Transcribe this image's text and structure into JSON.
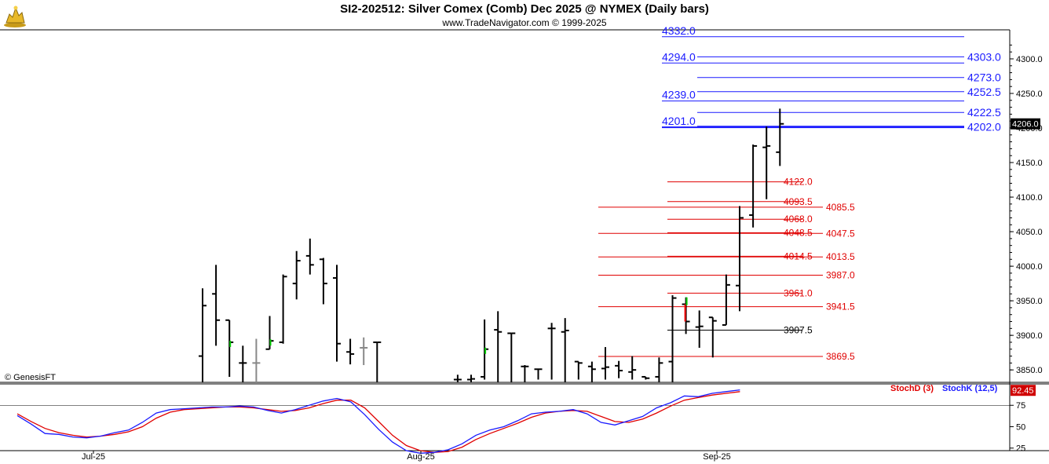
{
  "header": {
    "title": "SI2-202512:  Silver Comex (Comb) Dec 2025 @ NYMEX  (Daily bars)",
    "subtitle": "www.TradeNavigator.com © 1999-2025",
    "watermark": "© GenesisFT",
    "logo_icon": "golden-bull-icon"
  },
  "colors": {
    "price_bar": "#000000",
    "up_tick": "#00cc00",
    "down_tick": "#ff0000",
    "faded_bar": "#888888",
    "level_blue": "#1a1aff",
    "level_red": "#e00000",
    "stoch_d": "#e00000",
    "stoch_k": "#1a1aff"
  },
  "chart_data": [
    {
      "type": "ohlc",
      "y_axis_ticks": [
        3850,
        3900,
        3950,
        4000,
        4050,
        4100,
        4150,
        4200,
        4250,
        4300
      ],
      "y_range": [
        3832,
        4342
      ],
      "x_tick_labels": [
        {
          "label": "Jul-25",
          "bar": 6
        },
        {
          "label": "Aug-25",
          "bar": 29
        },
        {
          "label": "Sep-25",
          "bar": 50
        }
      ],
      "last_price_label": "4206.0",
      "bars": [
        {
          "o": 3870,
          "h": 3968,
          "l": 3832,
          "c": 3943,
          "style": "normal"
        },
        {
          "o": 3960,
          "h": 4002,
          "l": 3885,
          "c": 3922,
          "style": "normal"
        },
        {
          "o": 3922,
          "h": 3922,
          "l": 3840,
          "c": 3890,
          "style": "normal",
          "mark": "up"
        },
        {
          "o": 3860,
          "h": 3885,
          "l": 3832,
          "c": 3860,
          "style": "normal"
        },
        {
          "o": 3860,
          "h": 3895,
          "l": 3832,
          "c": 3860,
          "style": "faded"
        },
        {
          "o": 3880,
          "h": 3928,
          "l": 3880,
          "c": 3892,
          "style": "normal",
          "mark": "up"
        },
        {
          "o": 3890,
          "h": 3988,
          "l": 3888,
          "c": 3985,
          "style": "normal"
        },
        {
          "o": 3975,
          "h": 4022,
          "l": 3952,
          "c": 4008,
          "style": "normal"
        },
        {
          "o": 4015,
          "h": 4040,
          "l": 3988,
          "c": 4002,
          "style": "normal"
        },
        {
          "o": 4010,
          "h": 4012,
          "l": 3945,
          "c": 3975,
          "style": "normal"
        },
        {
          "o": 3983,
          "h": 4002,
          "l": 3862,
          "c": 3888,
          "style": "normal"
        },
        {
          "o": 3876,
          "h": 3895,
          "l": 3858,
          "c": 3873,
          "style": "normal"
        },
        {
          "o": 3882,
          "h": 3897,
          "l": 3857,
          "c": 3882,
          "style": "faded"
        },
        {
          "o": 3890,
          "h": 3890,
          "l": 3832,
          "c": 3890,
          "style": "normal"
        },
        {
          "o": null,
          "h": null,
          "l": null,
          "c": null,
          "style": "gap"
        },
        {
          "o": null,
          "h": null,
          "l": null,
          "c": null,
          "style": "gap"
        },
        {
          "o": null,
          "h": null,
          "l": null,
          "c": null,
          "style": "gap"
        },
        {
          "o": null,
          "h": null,
          "l": null,
          "c": null,
          "style": "gap"
        },
        {
          "o": null,
          "h": null,
          "l": null,
          "c": null,
          "style": "gap"
        },
        {
          "o": 3836,
          "h": 3843,
          "l": 3832,
          "c": 3836,
          "style": "normal"
        },
        {
          "o": 3836,
          "h": 3843,
          "l": 3832,
          "c": 3837,
          "style": "normal"
        },
        {
          "o": 3840,
          "h": 3923,
          "l": 3836,
          "c": 3880,
          "style": "normal",
          "mark": "up"
        },
        {
          "o": 3908,
          "h": 3935,
          "l": 3832,
          "c": 3905,
          "style": "normal"
        },
        {
          "o": 3903,
          "h": 3903,
          "l": 3832,
          "c": 3903,
          "style": "normal"
        },
        {
          "o": 3855,
          "h": 3857,
          "l": 3832,
          "c": 3855,
          "style": "normal"
        },
        {
          "o": 3851,
          "h": 3851,
          "l": 3836,
          "c": 3851,
          "style": "normal"
        },
        {
          "o": 3910,
          "h": 3918,
          "l": 3836,
          "c": 3910,
          "style": "normal"
        },
        {
          "o": 3905,
          "h": 3925,
          "l": 3832,
          "c": 3907,
          "style": "normal"
        },
        {
          "o": 3862,
          "h": 3862,
          "l": 3836,
          "c": 3860,
          "style": "normal"
        },
        {
          "o": 3855,
          "h": 3862,
          "l": 3832,
          "c": 3851,
          "style": "normal"
        },
        {
          "o": 3852,
          "h": 3883,
          "l": 3836,
          "c": 3854,
          "style": "normal"
        },
        {
          "o": 3856,
          "h": 3863,
          "l": 3838,
          "c": 3849,
          "style": "normal"
        },
        {
          "o": 3847,
          "h": 3870,
          "l": 3836,
          "c": 3850,
          "style": "normal"
        },
        {
          "o": 3840,
          "h": 3840,
          "l": 3836,
          "c": 3838,
          "style": "normal"
        },
        {
          "o": 3840,
          "h": 3868,
          "l": 3832,
          "c": 3860,
          "style": "normal"
        },
        {
          "o": 3862,
          "h": 3958,
          "l": 3832,
          "c": 3954,
          "style": "normal"
        },
        {
          "o": 3945,
          "h": 3955,
          "l": 3902,
          "c": 3920,
          "style": "normal",
          "mark": "down"
        },
        {
          "o": 3912,
          "h": 3936,
          "l": 3882,
          "c": 3913,
          "style": "normal"
        },
        {
          "o": 3926,
          "h": 3926,
          "l": 3868,
          "c": 3921,
          "style": "normal"
        },
        {
          "o": 3915,
          "h": 3988,
          "l": 3915,
          "c": 3973,
          "style": "normal"
        },
        {
          "o": 3972,
          "h": 4087,
          "l": 3935,
          "c": 4070,
          "style": "normal"
        },
        {
          "o": 4074,
          "h": 4176,
          "l": 4056,
          "c": 4174,
          "style": "normal"
        },
        {
          "o": 4172,
          "h": 4202,
          "l": 4097,
          "c": 4174,
          "style": "normal"
        },
        {
          "o": 4165,
          "h": 4228,
          "l": 4145,
          "c": 4206,
          "style": "normal"
        }
      ],
      "levels": [
        {
          "label": "4332.0",
          "value": 4332.0,
          "color": "blue",
          "side": "left"
        },
        {
          "label": "4303.0",
          "value": 4303.0,
          "color": "blue",
          "side": "right"
        },
        {
          "label": "4294.0",
          "value": 4294.0,
          "color": "blue",
          "side": "left"
        },
        {
          "label": "4273.0",
          "value": 4273.0,
          "color": "blue",
          "side": "right"
        },
        {
          "label": "4252.5",
          "value": 4252.5,
          "color": "blue",
          "side": "right"
        },
        {
          "label": "4239.0",
          "value": 4239.0,
          "color": "blue",
          "side": "left"
        },
        {
          "label": "4222.5",
          "value": 4222.5,
          "color": "blue",
          "side": "right"
        },
        {
          "label": "4201.0",
          "value": 4201.0,
          "color": "blue",
          "side": "left"
        },
        {
          "label": "4202.0",
          "value": 4202.0,
          "color": "blue",
          "side": "right"
        },
        {
          "label": "4122.0",
          "value": 4122.0,
          "color": "red",
          "side": "mid"
        },
        {
          "label": "4093.5",
          "value": 4093.5,
          "color": "red",
          "side": "mid"
        },
        {
          "label": "4085.5",
          "value": 4085.5,
          "color": "red",
          "side": "far"
        },
        {
          "label": "4068.0",
          "value": 4068.0,
          "color": "red",
          "side": "mid"
        },
        {
          "label": "4048.5",
          "value": 4048.5,
          "color": "red",
          "side": "mid"
        },
        {
          "label": "4047.5",
          "value": 4047.5,
          "color": "red",
          "side": "far"
        },
        {
          "label": "4014.5",
          "value": 4014.5,
          "color": "red",
          "side": "mid"
        },
        {
          "label": "4013.5",
          "value": 4013.5,
          "color": "red",
          "side": "far"
        },
        {
          "label": "3987.0",
          "value": 3987.0,
          "color": "red",
          "side": "far"
        },
        {
          "label": "3961.0",
          "value": 3961.0,
          "color": "red",
          "side": "mid"
        },
        {
          "label": "3941.5",
          "value": 3941.5,
          "color": "red",
          "side": "far"
        },
        {
          "label": "3907.5",
          "value": 3907.5,
          "color": "black",
          "side": "mid"
        },
        {
          "label": "3869.5",
          "value": 3869.5,
          "color": "red",
          "side": "far"
        }
      ]
    },
    {
      "type": "line",
      "name": "Stochastic",
      "y_axis_ticks": [
        25,
        50,
        75
      ],
      "y_range": [
        22,
        100
      ],
      "reference_line": 75,
      "legend": [
        "StochD (3)",
        "StochK (12,5)"
      ],
      "last_value_label": "92.45",
      "stoch_k": [
        [
          0,
          63
        ],
        [
          1,
          53
        ],
        [
          2,
          42
        ],
        [
          3,
          41
        ],
        [
          4,
          38
        ],
        [
          5,
          37
        ],
        [
          6,
          39
        ],
        [
          7,
          43
        ],
        [
          8,
          46
        ],
        [
          9,
          55
        ],
        [
          10,
          66
        ],
        [
          11,
          70
        ],
        [
          12,
          71
        ],
        [
          13,
          72
        ],
        [
          14,
          73
        ],
        [
          15,
          73
        ],
        [
          16,
          74
        ],
        [
          17,
          73
        ],
        [
          18,
          69
        ],
        [
          19,
          66
        ],
        [
          20,
          70
        ],
        [
          21,
          75
        ],
        [
          22,
          80
        ],
        [
          23,
          83
        ],
        [
          24,
          79
        ],
        [
          25,
          64
        ],
        [
          26,
          47
        ],
        [
          27,
          32
        ],
        [
          28,
          22
        ],
        [
          29,
          19
        ],
        [
          30,
          20
        ],
        [
          31,
          23
        ],
        [
          32,
          30
        ],
        [
          33,
          40
        ],
        [
          34,
          46
        ],
        [
          35,
          50
        ],
        [
          36,
          57
        ],
        [
          37,
          65
        ],
        [
          38,
          67
        ],
        [
          39,
          68
        ],
        [
          40,
          70
        ],
        [
          41,
          65
        ],
        [
          42,
          55
        ],
        [
          43,
          52
        ],
        [
          44,
          57
        ],
        [
          45,
          62
        ],
        [
          46,
          72
        ],
        [
          47,
          78
        ],
        [
          48,
          86
        ],
        [
          49,
          85
        ],
        [
          50,
          89
        ],
        [
          51,
          91
        ],
        [
          52,
          93
        ]
      ],
      "stoch_d": [
        [
          0,
          65
        ],
        [
          1,
          56
        ],
        [
          2,
          48
        ],
        [
          3,
          43
        ],
        [
          4,
          40
        ],
        [
          5,
          38
        ],
        [
          6,
          39
        ],
        [
          7,
          41
        ],
        [
          8,
          44
        ],
        [
          9,
          50
        ],
        [
          10,
          60
        ],
        [
          11,
          67
        ],
        [
          12,
          70
        ],
        [
          13,
          71
        ],
        [
          14,
          72
        ],
        [
          15,
          73
        ],
        [
          16,
          73
        ],
        [
          17,
          72
        ],
        [
          18,
          70
        ],
        [
          19,
          68
        ],
        [
          20,
          69
        ],
        [
          21,
          72
        ],
        [
          22,
          77
        ],
        [
          23,
          81
        ],
        [
          24,
          81
        ],
        [
          25,
          72
        ],
        [
          26,
          56
        ],
        [
          27,
          40
        ],
        [
          28,
          28
        ],
        [
          29,
          22
        ],
        [
          30,
          20
        ],
        [
          31,
          21
        ],
        [
          32,
          26
        ],
        [
          33,
          35
        ],
        [
          34,
          42
        ],
        [
          35,
          48
        ],
        [
          36,
          54
        ],
        [
          37,
          61
        ],
        [
          38,
          66
        ],
        [
          39,
          68
        ],
        [
          40,
          69
        ],
        [
          41,
          68
        ],
        [
          42,
          62
        ],
        [
          43,
          56
        ],
        [
          44,
          55
        ],
        [
          45,
          59
        ],
        [
          46,
          66
        ],
        [
          47,
          74
        ],
        [
          48,
          81
        ],
        [
          49,
          84
        ],
        [
          50,
          87
        ],
        [
          51,
          89
        ],
        [
          52,
          91
        ]
      ]
    }
  ]
}
